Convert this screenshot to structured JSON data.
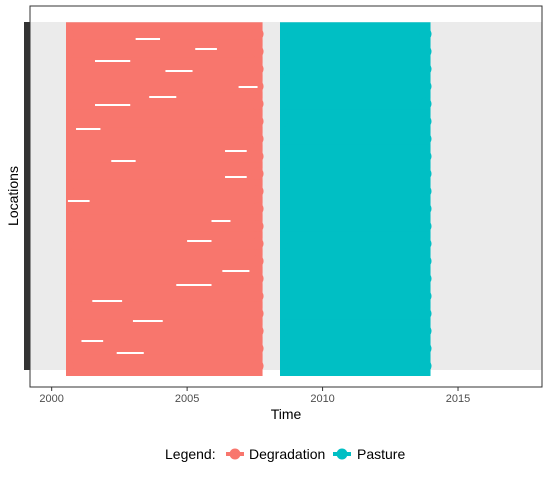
{
  "chart_data": {
    "type": "line",
    "title": "",
    "xlabel": "Time",
    "ylabel": "Locations",
    "xlim": [
      1999.2,
      2018.1
    ],
    "x_ticks": [
      2000,
      2005,
      2010,
      2015
    ],
    "x_tick_labels": [
      "2000",
      "2005",
      "2010",
      "2015"
    ],
    "y_ticks_shown": false,
    "grid": false,
    "panel_background": "#ebebeb",
    "legend": {
      "position": "bottom",
      "title": "Legend:",
      "entries": [
        "Degradation",
        "Pasture"
      ]
    },
    "series": [
      {
        "name": "Degradation",
        "color": "#f8766d",
        "segments": [
          {
            "x0": 2000.6,
            "x1": 2007.6
          },
          {
            "x0": 2000.6,
            "x1": 2007.6
          },
          {
            "x0": 2000.6,
            "x1": 2007.6
          },
          {
            "x0": 2000.6,
            "x1": 2007.6
          },
          {
            "x0": 2000.6,
            "x1": 2007.6
          },
          {
            "x0": 2000.6,
            "x1": 2007.6
          },
          {
            "x0": 2000.6,
            "x1": 2007.6
          },
          {
            "x0": 2000.6,
            "x1": 2007.6
          },
          {
            "x0": 2000.6,
            "x1": 2007.6
          },
          {
            "x0": 2000.6,
            "x1": 2007.6
          },
          {
            "x0": 2000.6,
            "x1": 2007.6
          },
          {
            "x0": 2000.6,
            "x1": 2007.6
          },
          {
            "x0": 2000.6,
            "x1": 2007.6
          },
          {
            "x0": 2000.6,
            "x1": 2007.6
          },
          {
            "x0": 2000.6,
            "x1": 2007.6
          },
          {
            "x0": 2000.6,
            "x1": 2007.6
          },
          {
            "x0": 2000.6,
            "x1": 2007.6
          },
          {
            "x0": 2000.6,
            "x1": 2007.6
          },
          {
            "x0": 2000.6,
            "x1": 2007.6
          },
          {
            "x0": 2000.6,
            "x1": 2007.6
          }
        ]
      },
      {
        "name": "Pasture",
        "color": "#00bfc4",
        "segments": [
          {
            "x0": 2008.5,
            "x1": 2013.8
          },
          {
            "x0": 2008.5,
            "x1": 2013.8
          },
          {
            "x0": 2008.5,
            "x1": 2013.8
          },
          {
            "x0": 2008.5,
            "x1": 2013.8
          },
          {
            "x0": 2008.5,
            "x1": 2013.8
          },
          {
            "x0": 2008.5,
            "x1": 2013.8
          },
          {
            "x0": 2008.5,
            "x1": 2013.8
          },
          {
            "x0": 2008.5,
            "x1": 2013.8
          },
          {
            "x0": 2008.5,
            "x1": 2013.8
          },
          {
            "x0": 2008.5,
            "x1": 2013.8
          },
          {
            "x0": 2008.5,
            "x1": 2013.8
          },
          {
            "x0": 2008.5,
            "x1": 2013.8
          },
          {
            "x0": 2008.5,
            "x1": 2013.8
          },
          {
            "x0": 2008.5,
            "x1": 2013.8
          },
          {
            "x0": 2008.5,
            "x1": 2013.8
          },
          {
            "x0": 2008.5,
            "x1": 2013.8
          },
          {
            "x0": 2008.5,
            "x1": 2013.8
          },
          {
            "x0": 2008.5,
            "x1": 2013.8
          },
          {
            "x0": 2008.5,
            "x1": 2013.8
          },
          {
            "x0": 2008.5,
            "x1": 2013.8
          }
        ]
      }
    ]
  }
}
